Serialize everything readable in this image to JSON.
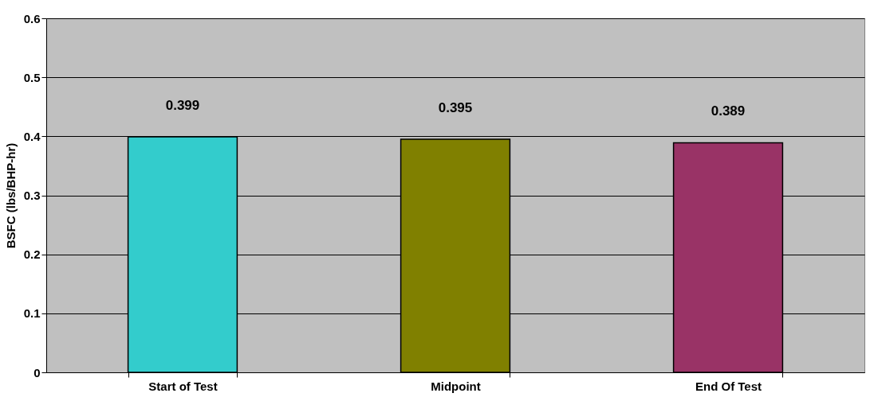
{
  "chart_data": {
    "type": "bar",
    "ylabel": "BSFC (lbs/BHP-hr)",
    "categories": [
      "Start of Test",
      "Midpoint",
      "End Of Test"
    ],
    "values": [
      0.399,
      0.395,
      0.389
    ],
    "colors": [
      "#33cccc",
      "#808000",
      "#993366"
    ],
    "ylim": [
      0,
      0.6
    ],
    "yticks": [
      0,
      0.1,
      0.2,
      0.3,
      0.4,
      0.5,
      0.6
    ],
    "grid": "y",
    "data_labels": true
  }
}
